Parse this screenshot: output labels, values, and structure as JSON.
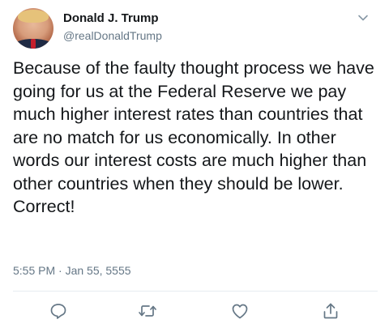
{
  "author": {
    "name": "Donald J. Trump",
    "handle": "@realDonaldTrump"
  },
  "tweet": {
    "text": "Because of the faulty thought process we have going for us at the Federal Reserve we pay much higher interest rates than countries that are no match for us economically. In other words our interest costs are much higher than other countries when they should be lower. Correct!",
    "timestamp": "5:55 PM · Jan 55, 5555"
  },
  "icons": {
    "menu": "chevron-down-icon",
    "reply": "reply-icon",
    "retweet": "retweet-icon",
    "like": "heart-icon",
    "share": "share-icon"
  },
  "colors": {
    "text": "#14171a",
    "secondary": "#657786",
    "divider": "#e6ecf0"
  }
}
